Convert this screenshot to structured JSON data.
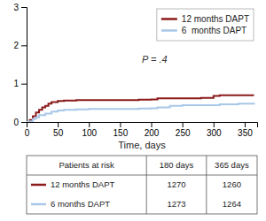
{
  "chart_data": {
    "type": "step",
    "xlabel": "Time, days",
    "xlim": [
      0,
      370
    ],
    "ylim": [
      0,
      3
    ],
    "xticks": [
      0,
      50,
      100,
      150,
      200,
      250,
      300,
      350
    ],
    "yticks": [
      0,
      1,
      2,
      3
    ],
    "legend": "upper right",
    "series": [
      {
        "name": "12 months DAPT",
        "color": "#8B1A1A",
        "x": [
          0,
          5,
          10,
          15,
          20,
          25,
          30,
          35,
          40,
          50,
          60,
          80,
          100,
          120,
          150,
          180,
          200,
          210,
          220,
          250,
          280,
          300,
          310,
          330,
          365
        ],
        "values": [
          0,
          0.05,
          0.15,
          0.25,
          0.32,
          0.38,
          0.42,
          0.48,
          0.52,
          0.55,
          0.56,
          0.57,
          0.57,
          0.57,
          0.57,
          0.58,
          0.59,
          0.62,
          0.62,
          0.62,
          0.63,
          0.68,
          0.7,
          0.7,
          0.7
        ]
      },
      {
        "name": "6  months DAPT",
        "color": "#a8c8e8",
        "x": [
          0,
          5,
          10,
          15,
          20,
          30,
          40,
          50,
          60,
          80,
          100,
          120,
          150,
          180,
          200,
          210,
          230,
          250,
          280,
          310,
          340,
          365
        ],
        "values": [
          0,
          0.02,
          0.08,
          0.12,
          0.18,
          0.22,
          0.27,
          0.3,
          0.32,
          0.33,
          0.34,
          0.34,
          0.34,
          0.35,
          0.36,
          0.38,
          0.42,
          0.44,
          0.44,
          0.46,
          0.48,
          0.5
        ]
      }
    ],
    "annotations": [
      {
        "text": "P = .4",
        "x": 185,
        "y": 1.55
      }
    ],
    "table": {
      "columns": [
        "Patients at risk",
        "180 days",
        "365 days"
      ],
      "rows": [
        {
          "name": "12 months DAPT",
          "values": [
            1270,
            1260
          ]
        },
        {
          "name": "6 months DAPT",
          "values": [
            1273,
            1264
          ]
        }
      ]
    }
  }
}
